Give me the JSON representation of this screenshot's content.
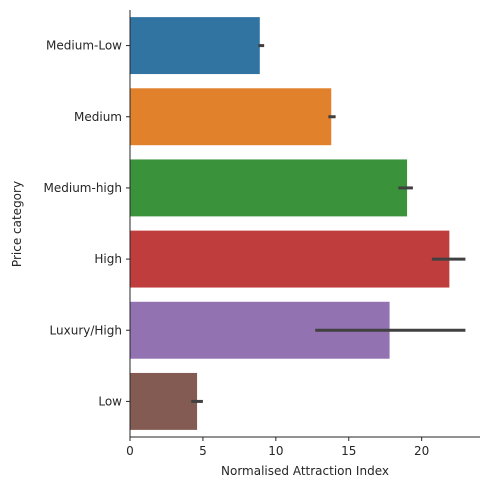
{
  "chart_data": {
    "type": "bar",
    "orientation": "horizontal",
    "xlabel": "Normalised Attraction Index",
    "ylabel": "Price category",
    "xlim": [
      0,
      24
    ],
    "xticks": [
      0,
      5,
      10,
      15,
      20
    ],
    "grid": false,
    "categories": [
      "Medium-Low",
      "Medium",
      "Medium-high",
      "High",
      "Luxury/High",
      "Low"
    ],
    "values": [
      8.9,
      13.8,
      19.0,
      21.9,
      17.8,
      4.6
    ],
    "error_low": [
      8.8,
      13.6,
      18.4,
      20.7,
      12.7,
      4.2
    ],
    "error_high": [
      9.2,
      14.1,
      19.4,
      23.0,
      23.0,
      5.0
    ],
    "colors": [
      "#3274a1",
      "#e1812c",
      "#3a923a",
      "#c03d3e",
      "#9372b2",
      "#845b53"
    ]
  }
}
